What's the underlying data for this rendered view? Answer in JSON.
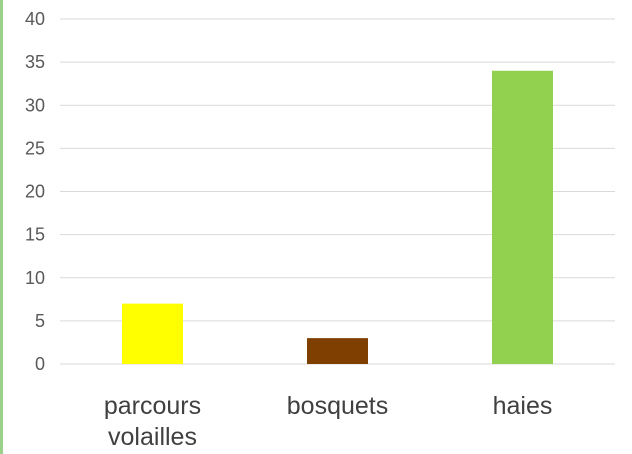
{
  "chart_data": {
    "type": "bar",
    "title": "",
    "xlabel": "",
    "ylabel": "",
    "ylim": [
      0,
      40
    ],
    "yticks": [
      "0",
      "5",
      "10",
      "15",
      "20",
      "25",
      "30",
      "35",
      "40"
    ],
    "grid": true,
    "legend": "none",
    "categories": [
      [
        "parcours",
        "volailles"
      ],
      [
        "bosquets"
      ],
      [
        "haies"
      ]
    ],
    "values": [
      7,
      3,
      34
    ],
    "colors": [
      "#ffff00",
      "#7f3f00",
      "#92d050"
    ]
  },
  "theme": {
    "gridline": "#d9d9d9",
    "frame_accent": "#9bd08a",
    "tick_text": "#595959",
    "category_text": "#404040"
  }
}
